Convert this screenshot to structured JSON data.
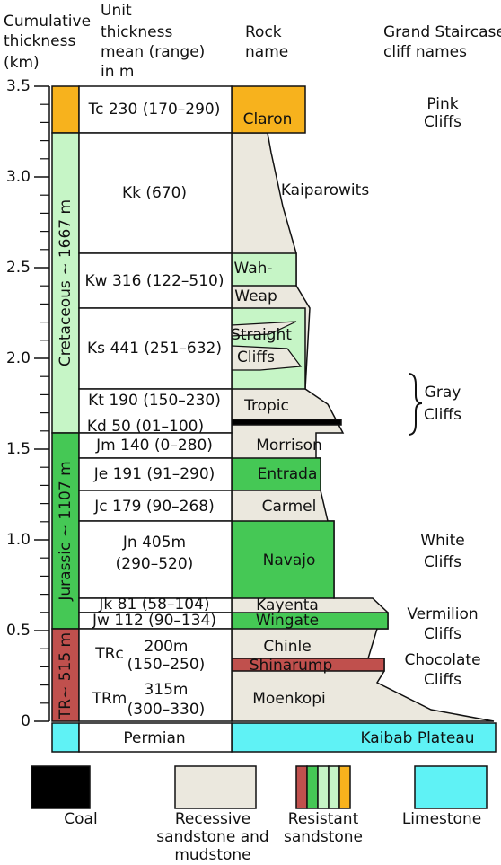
{
  "headers": {
    "thickness": [
      "Cumulative",
      "thickness",
      "(km)"
    ],
    "unit": [
      "Unit",
      "thickness",
      "mean (range)",
      "in m"
    ],
    "rock": [
      "Rock",
      "name"
    ],
    "cliffs": [
      "Grand Staircase",
      "cliff names"
    ]
  },
  "axis": {
    "ylim": [
      0,
      3.5
    ],
    "yticks": [
      0,
      0.5,
      {
        "value": 1,
        "label": "1.0"
      },
      1.5,
      {
        "value": 2,
        "label": "2.0"
      },
      2.5,
      {
        "value": 3,
        "label": "3.0"
      },
      3.5
    ]
  },
  "periods": [
    "Cretaceous ~ 1667 m",
    "Jurassic ~ 1107 m",
    "TR~ 515 m"
  ],
  "units": [
    {
      "label": [
        "Tc 230 (170–290)"
      ],
      "rock": [
        "Claron"
      ]
    },
    {
      "label": [
        "Kk (670)"
      ],
      "rock": [
        "Kaiparowits"
      ]
    },
    {
      "label": [
        "Kw 316 (122–510)"
      ],
      "rock": [
        "Wah-",
        "Weap"
      ]
    },
    {
      "label": [
        "Ks 441 (251–632)"
      ],
      "rock": [
        "Straight",
        "Cliffs"
      ]
    },
    {
      "label": [
        "Kt 190 (150–230)"
      ],
      "rock": [
        "Tropic"
      ]
    },
    {
      "label": [
        "Kd   50 (01–100)"
      ]
    },
    {
      "label": [
        "Jm 140 (0–280)"
      ],
      "rock": [
        "Morrison"
      ]
    },
    {
      "label": [
        "Je 191 (91–290)"
      ],
      "rock": [
        "Entrada"
      ]
    },
    {
      "label": [
        "Jc 179 (90–268)"
      ],
      "rock": [
        "Carmel"
      ]
    },
    {
      "label": [
        "Jn 405m",
        "(290–520)"
      ],
      "rock": [
        "Navajo"
      ]
    },
    {
      "label": [
        "Jk 81 (58–104)"
      ],
      "rock": [
        "Kayenta"
      ]
    },
    {
      "label": [
        "Jw 112 (90–134)"
      ],
      "rock": [
        "Wingate"
      ]
    },
    {
      "symbol": "TRc",
      "label": [
        "200m",
        "(150–250)"
      ],
      "rock": [
        "Chinle",
        "Shinarump"
      ]
    },
    {
      "symbol": "TRm",
      "label": [
        "315m",
        "(300–330)"
      ],
      "rock": [
        "Moenkopi"
      ]
    },
    {
      "label": [
        "Permian"
      ],
      "rock": [
        "Kaibab Plateau"
      ]
    }
  ],
  "cliffs": [
    [
      "Pink",
      "Cliffs"
    ],
    [
      "Gray",
      "Cliffs"
    ],
    [
      "White",
      "Cliffs"
    ],
    [
      "Vermilion",
      "Cliffs"
    ],
    [
      "Chocolate",
      "Cliffs"
    ]
  ],
  "legend": [
    [
      "Coal"
    ],
    [
      "Recessive",
      "sandstone and",
      "mudstone"
    ],
    [
      "Resistant",
      "sandstone"
    ],
    [
      "Limestone"
    ]
  ]
}
